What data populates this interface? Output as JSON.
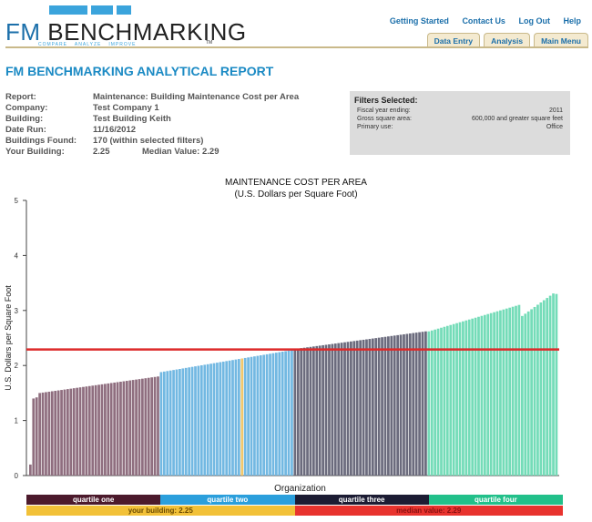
{
  "brand": {
    "name_part1": "FM",
    "name_part2": "BENCHMARKING",
    "tagline": [
      "COMPARE",
      "ANALYZE",
      "IMPROVE"
    ],
    "trademark": "TM"
  },
  "top_links": [
    "Getting Started",
    "Contact Us",
    "Log Out",
    "Help"
  ],
  "tabs": [
    "Data Entry",
    "Analysis",
    "Main Menu"
  ],
  "report": {
    "title": "FM BENCHMARKING ANALYTICAL REPORT",
    "fields": [
      {
        "label": "Report:",
        "value": "Maintenance: Building Maintenance Cost per Area"
      },
      {
        "label": "Company:",
        "value": "Test Company 1"
      },
      {
        "label": "Building:",
        "value": "Test Building Keith"
      },
      {
        "label": "Date Run:",
        "value": "11/16/2012"
      },
      {
        "label": "Buildings Found:",
        "value": "170 (within selected filters)"
      },
      {
        "label": "Your Building:",
        "value": "2.25"
      }
    ],
    "median_text": "Median Value: 2.29"
  },
  "filters": {
    "title": "Filters Selected:",
    "items": [
      {
        "label": "Fiscal year ending:",
        "value": "2011"
      },
      {
        "label": "Gross square area:",
        "value": "600,000 and greater square feet"
      },
      {
        "label": "Primary use:",
        "value": "Office"
      }
    ]
  },
  "chart_data": {
    "type": "bar",
    "title": "MAINTENANCE COST PER AREA",
    "subtitle": "(U.S. Dollars per Square Foot)",
    "xlabel": "Organization",
    "ylabel": "U.S. Dollars per Square Foot",
    "ylim": [
      0,
      5
    ],
    "yticks": [
      "0",
      "1",
      "2",
      "3",
      "4",
      "5"
    ],
    "n_buildings": 170,
    "your_building_value": 2.25,
    "median_value": 2.29,
    "quartiles": [
      {
        "name": "quartile one",
        "range": [
          0.2,
          1.8
        ],
        "color": "#8f6e7f"
      },
      {
        "name": "quartile two",
        "range": [
          1.88,
          2.28
        ],
        "color": "#72b8e2"
      },
      {
        "name": "quartile three",
        "range": [
          2.3,
          2.62
        ],
        "color": "#6b6b7d"
      },
      {
        "name": "quartile four",
        "range": [
          2.62,
          3.3
        ],
        "color": "#74dcb8"
      }
    ],
    "highlight_color": "#f2c76b",
    "median_line_color": "#dd2a2a"
  },
  "legend": {
    "quartiles": [
      {
        "label": "quartile one",
        "bg": "#4c1a2c",
        "fg": "#ffffff"
      },
      {
        "label": "quartile two",
        "bg": "#2b9fdc",
        "fg": "#ffffff"
      },
      {
        "label": "quartile three",
        "bg": "#1c1c33",
        "fg": "#ffffff"
      },
      {
        "label": "quartile four",
        "bg": "#22c08a",
        "fg": "#ffffff"
      }
    ],
    "your_building": {
      "label": "your building: 2.25",
      "bg": "#f2c138",
      "fg": "#6b4a00"
    },
    "median": {
      "label": "median value: 2.29",
      "bg": "#e8332e",
      "fg": "#8a1010"
    }
  }
}
